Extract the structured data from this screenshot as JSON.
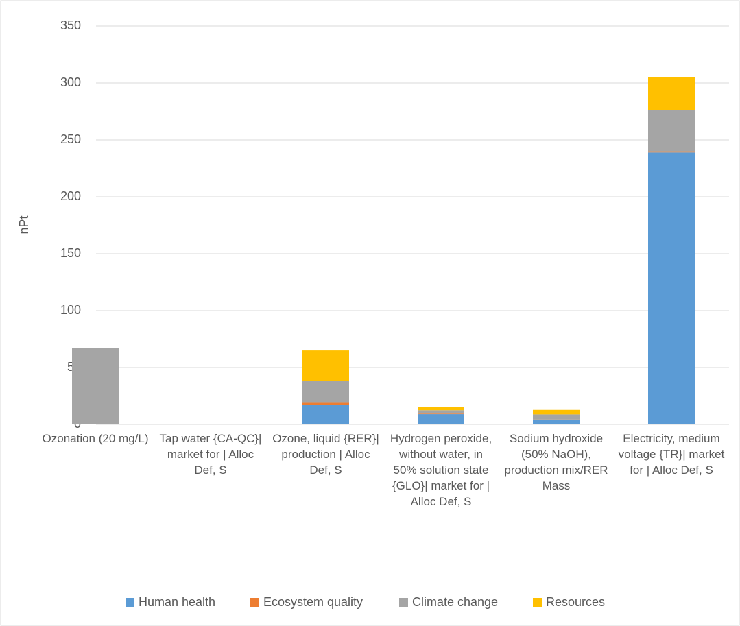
{
  "chart_data": {
    "type": "bar",
    "stacked": true,
    "y_label": "nPt",
    "categories": [
      "Ozonation (20 mg/L)",
      "Tap water {CA-QC}| market for | Alloc Def, S",
      "Ozone, liquid {RER}| production | Alloc Def, S",
      "Hydrogen peroxide, without water, in 50% solution state {GLO}| market for | Alloc Def, S",
      "Sodium hydroxide (50% NaOH), production mix/RER Mass",
      "Electricity, medium voltage {TR}| market for | Alloc Def, S"
    ],
    "series": [
      {
        "name": "Human health",
        "color": "#5b9bd5",
        "values": [
          0,
          0,
          17,
          9,
          4,
          239
        ]
      },
      {
        "name": "Ecosystem quality",
        "color": "#ed7d31",
        "values": [
          0,
          0,
          2,
          0.5,
          0.3,
          1
        ]
      },
      {
        "name": "Climate change",
        "color": "#a5a5a5",
        "values": [
          67,
          0,
          19,
          3,
          4.5,
          36
        ]
      },
      {
        "name": "Resources",
        "color": "#ffc000",
        "values": [
          0,
          0,
          27,
          3,
          4,
          29
        ]
      }
    ],
    "ylim": [
      0,
      350
    ],
    "yticks": [
      0,
      50,
      100,
      150,
      200,
      250,
      300,
      350
    ],
    "grid": true,
    "legend": "bottom"
  }
}
